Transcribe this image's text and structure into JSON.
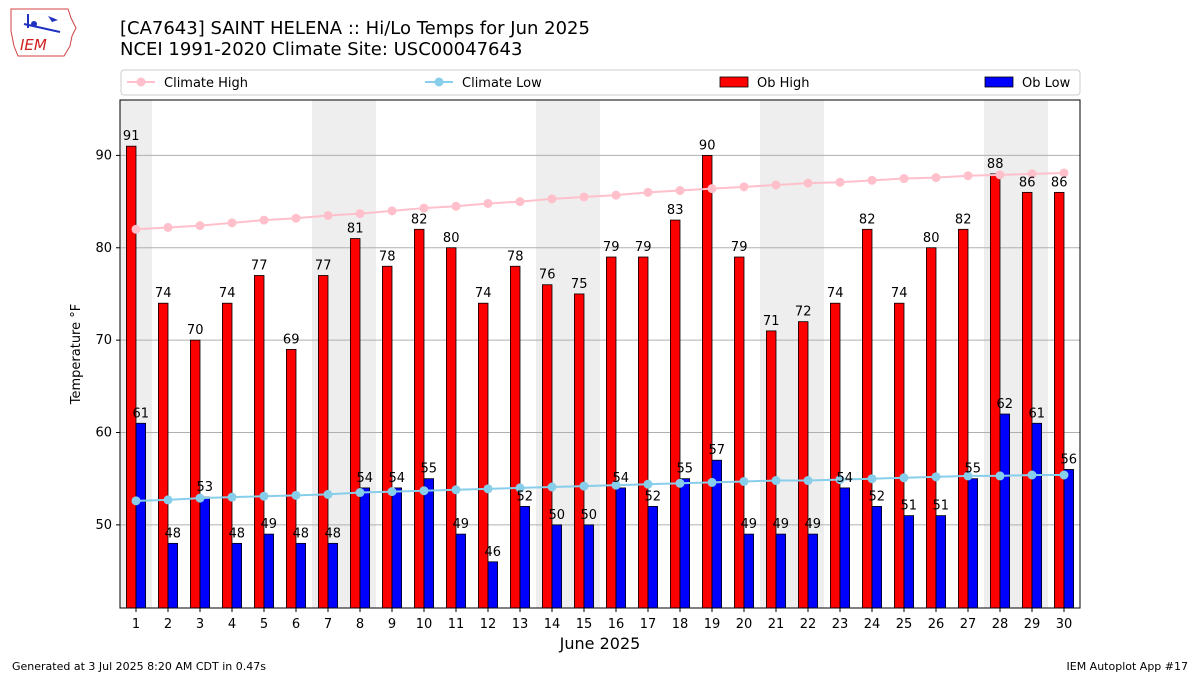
{
  "header": {
    "title_line1": "[CA7643] SAINT HELENA :: Hi/Lo Temps for Jun 2025",
    "title_line2": "NCEI 1991-2020 Climate Site: USC00047643",
    "logo_text": "IEM"
  },
  "footer": {
    "left": "Generated at 3 Jul 2025 8:20 AM CDT in 0.47s",
    "right": "IEM Autoplot App #17"
  },
  "colors": {
    "ob_high": "#ff0000",
    "ob_low": "#0000ff",
    "climate_high": "#ffc0cb",
    "climate_low": "#87ceeb",
    "weekend_band": "#eeeeee",
    "grid": "#b0b0b0"
  },
  "chart_data": {
    "type": "bar",
    "xlabel": "June 2025",
    "ylabel": "Temperature °F",
    "ylim": [
      41,
      96
    ],
    "yticks": [
      50,
      60,
      70,
      80,
      90
    ],
    "grid": "horizontal",
    "legend_placement": "top",
    "categories": [
      "1",
      "2",
      "3",
      "4",
      "5",
      "6",
      "7",
      "8",
      "9",
      "10",
      "11",
      "12",
      "13",
      "14",
      "15",
      "16",
      "17",
      "18",
      "19",
      "20",
      "21",
      "22",
      "23",
      "24",
      "25",
      "26",
      "27",
      "28",
      "29",
      "30"
    ],
    "weekend_days": [
      1,
      7,
      8,
      14,
      15,
      21,
      22,
      28,
      29
    ],
    "series": [
      {
        "name": "Ob High",
        "kind": "bar",
        "values": [
          91,
          74,
          70,
          74,
          77,
          69,
          77,
          81,
          78,
          82,
          80,
          74,
          78,
          76,
          75,
          79,
          79,
          83,
          90,
          79,
          71,
          72,
          74,
          82,
          74,
          80,
          82,
          88,
          86,
          86
        ]
      },
      {
        "name": "Ob Low",
        "kind": "bar",
        "values": [
          61,
          48,
          53,
          48,
          49,
          48,
          48,
          54,
          54,
          55,
          49,
          46,
          52,
          50,
          50,
          54,
          52,
          55,
          57,
          49,
          49,
          49,
          54,
          52,
          51,
          51,
          55,
          62,
          61,
          56
        ]
      },
      {
        "name": "Climate High",
        "kind": "line",
        "values": [
          82.0,
          82.2,
          82.4,
          82.7,
          83.0,
          83.2,
          83.5,
          83.7,
          84.0,
          84.3,
          84.5,
          84.8,
          85.0,
          85.3,
          85.5,
          85.7,
          86.0,
          86.2,
          86.4,
          86.6,
          86.8,
          87.0,
          87.1,
          87.3,
          87.5,
          87.6,
          87.8,
          87.9,
          88.0,
          88.1
        ]
      },
      {
        "name": "Climate Low",
        "kind": "line",
        "values": [
          52.6,
          52.7,
          52.9,
          53.0,
          53.1,
          53.2,
          53.3,
          53.5,
          53.6,
          53.7,
          53.8,
          53.9,
          54.0,
          54.1,
          54.2,
          54.3,
          54.4,
          54.5,
          54.6,
          54.7,
          54.8,
          54.8,
          54.9,
          55.0,
          55.1,
          55.2,
          55.3,
          55.3,
          55.4,
          55.4
        ]
      }
    ]
  }
}
